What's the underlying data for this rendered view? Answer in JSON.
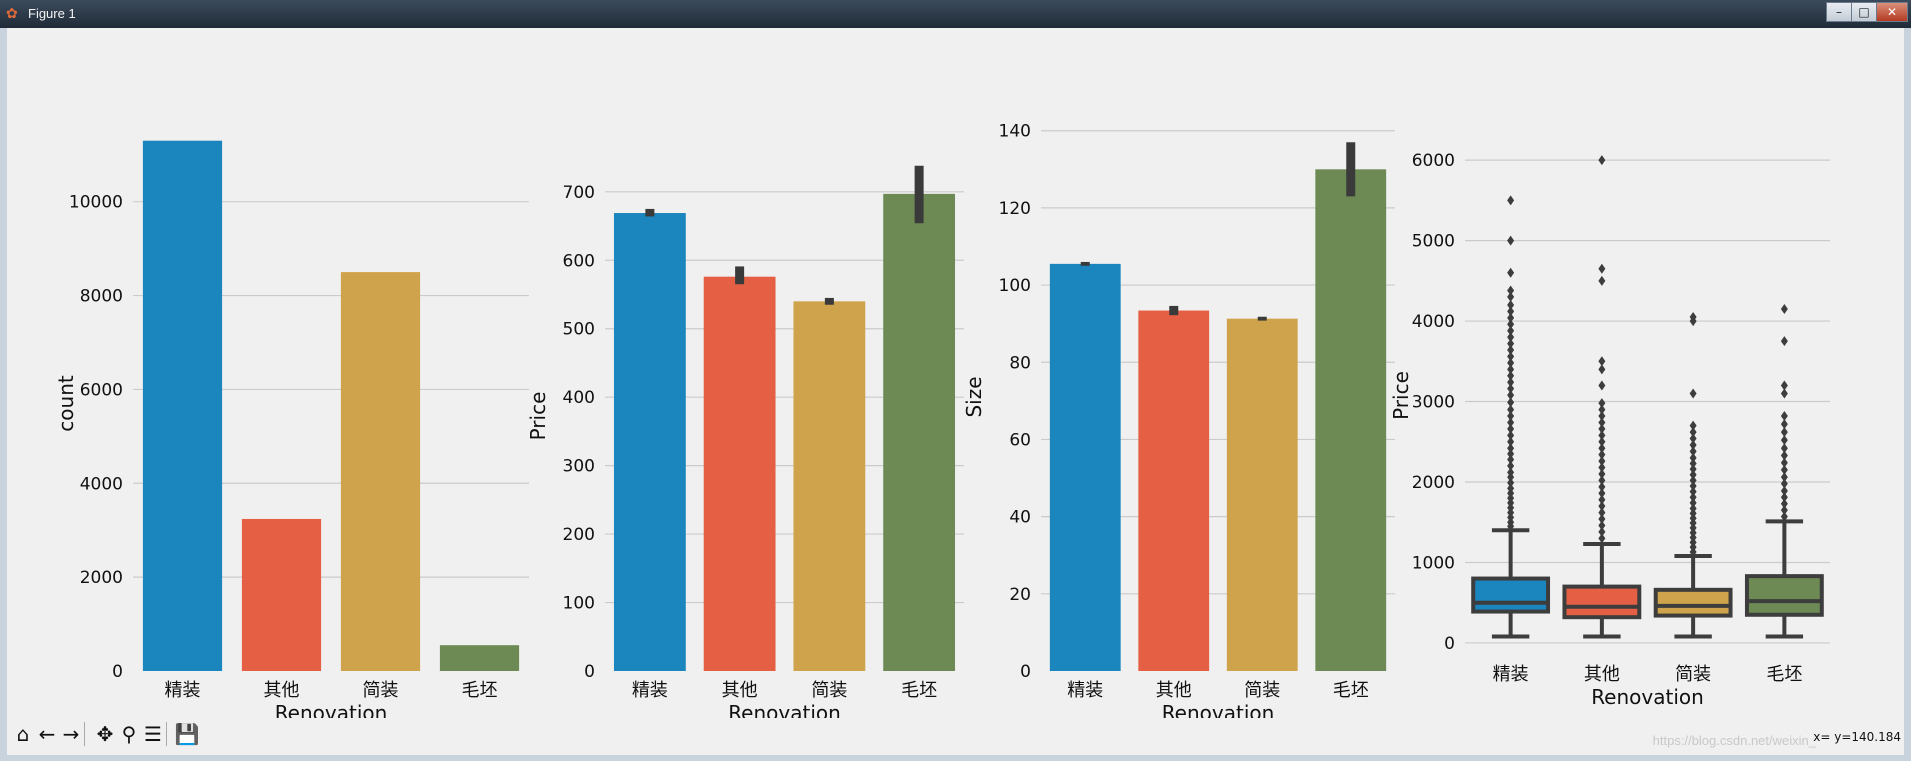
{
  "window": {
    "title": "Figure 1",
    "controls": [
      "–",
      "□",
      "✕"
    ]
  },
  "toolbar": {
    "buttons": [
      {
        "name": "home-icon",
        "glyph": "⌂"
      },
      {
        "name": "back-icon",
        "glyph": "←"
      },
      {
        "name": "forward-icon",
        "glyph": "→"
      },
      {
        "name": "pan-icon",
        "glyph": "✥"
      },
      {
        "name": "zoom-icon",
        "glyph": "⚲"
      },
      {
        "name": "configure-subplots-icon",
        "glyph": "☰"
      },
      {
        "name": "save-icon",
        "glyph": "💾"
      }
    ]
  },
  "status": {
    "coords": "x= y=140.184"
  },
  "watermark": "https://blog.csdn.net/weixin_",
  "colors": {
    "c1": "#1a86bd",
    "c2": "#e45f43",
    "c3": "#cfa34b",
    "c4": "#6d8a55",
    "grid": "#cbcbcb",
    "err": "#3a3a3a"
  },
  "chart_data": [
    {
      "type": "bar",
      "categories": [
        "精装",
        "其他",
        "简装",
        "毛坯"
      ],
      "values": [
        11300,
        3240,
        8500,
        550
      ],
      "xlabel": "Renovation",
      "ylabel": "count",
      "ylim": [
        0,
        11400
      ],
      "yticks": [
        0,
        2000,
        4000,
        6000,
        8000,
        10000
      ],
      "grid": "horizontal"
    },
    {
      "type": "bar",
      "categories": [
        "精装",
        "其他",
        "简装",
        "毛坯"
      ],
      "values": [
        669,
        576,
        540,
        697
      ],
      "ci": [
        [
          664,
          675
        ],
        [
          565,
          591
        ],
        [
          535,
          545
        ],
        [
          654,
          738
        ]
      ],
      "xlabel": "Renovation",
      "ylabel": "Price",
      "ylim": [
        0,
        745
      ],
      "yticks": [
        0,
        100,
        200,
        300,
        400,
        500,
        600,
        700
      ],
      "grid": "horizontal"
    },
    {
      "type": "bar",
      "categories": [
        "精装",
        "其他",
        "简装",
        "毛坯"
      ],
      "values": [
        105.5,
        93.4,
        91.3,
        130.0
      ],
      "ci": [
        [
          105,
          106
        ],
        [
          92.2,
          94.6
        ],
        [
          90.8,
          91.8
        ],
        [
          123,
          137
        ]
      ],
      "xlabel": "Renovation",
      "ylabel": "Size",
      "ylim": [
        0,
        142
      ],
      "yticks": [
        0,
        20,
        40,
        60,
        80,
        100,
        120,
        140
      ],
      "grid": "horizontal"
    },
    {
      "type": "box",
      "categories": [
        "精装",
        "其他",
        "简装",
        "毛坯"
      ],
      "boxes": [
        {
          "min": 80,
          "q1": 390,
          "median": 500,
          "q3": 800,
          "max": 1400,
          "outliers": [
            1450,
            1500,
            1560,
            1620,
            1680,
            1740,
            1800,
            1860,
            1920,
            1990,
            2060,
            2120,
            2200,
            2280,
            2350,
            2420,
            2500,
            2580,
            2660,
            2740,
            2820,
            2900,
            2990,
            3080,
            3160,
            3240,
            3320,
            3400,
            3480,
            3560,
            3640,
            3720,
            3800,
            3880,
            3960,
            4040,
            4120,
            4200,
            4300,
            4380,
            4600,
            5000,
            5500
          ]
        },
        {
          "min": 80,
          "q1": 320,
          "median": 450,
          "q3": 700,
          "max": 1230,
          "outliers": [
            1300,
            1380,
            1460,
            1540,
            1620,
            1700,
            1780,
            1860,
            1940,
            2020,
            2100,
            2180,
            2260,
            2340,
            2420,
            2500,
            2580,
            2660,
            2740,
            2820,
            2900,
            2980,
            3200,
            3400,
            3500,
            4500,
            4650,
            6000
          ]
        },
        {
          "min": 80,
          "q1": 340,
          "median": 460,
          "q3": 660,
          "max": 1080,
          "outliers": [
            1130,
            1190,
            1250,
            1310,
            1370,
            1430,
            1490,
            1550,
            1610,
            1670,
            1740,
            1810,
            1880,
            1950,
            2020,
            2090,
            2160,
            2230,
            2300,
            2380,
            2460,
            2540,
            2620,
            2700,
            3100,
            4000,
            4050
          ]
        },
        {
          "min": 80,
          "q1": 350,
          "median": 520,
          "q3": 830,
          "max": 1510,
          "outliers": [
            1570,
            1650,
            1730,
            1810,
            1890,
            1980,
            2060,
            2150,
            2240,
            2330,
            2420,
            2520,
            2620,
            2720,
            2820,
            3100,
            3200,
            3750,
            4150
          ]
        }
      ],
      "xlabel": "Renovation",
      "ylabel": "Price",
      "ylim": [
        -150,
        6300
      ],
      "yticks": [
        0,
        1000,
        2000,
        3000,
        4000,
        5000,
        6000
      ],
      "grid": "horizontal"
    }
  ]
}
